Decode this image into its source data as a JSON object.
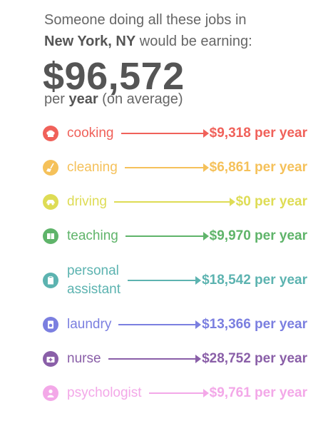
{
  "intro": {
    "line1": "Someone doing all these jobs in",
    "city": "New York, NY",
    "line2_rest": " would be earning:"
  },
  "total": "$96,572",
  "per_year": {
    "prefix": "per ",
    "bold": "year",
    "suffix": " (on average)"
  },
  "jobs": [
    {
      "label": "cooking",
      "value": "$9,318 per year",
      "color": "#f0615a",
      "icon": "chef-hat-icon"
    },
    {
      "label": "cleaning",
      "value": "$6,861 per year",
      "color": "#f5c15a",
      "icon": "broom-icon"
    },
    {
      "label": "driving",
      "value": "$0 per year",
      "color": "#dedc55",
      "icon": "car-icon"
    },
    {
      "label": "teaching",
      "value": "$9,970 per year",
      "color": "#5fb46a",
      "icon": "book-icon"
    },
    {
      "label": "personal",
      "label2": "assistant",
      "value": "$18,542 per year",
      "color": "#5cb3b0",
      "icon": "clipboard-icon"
    },
    {
      "label": "laundry",
      "value": "$13,366 per year",
      "color": "#7b7fe0",
      "icon": "washing-machine-icon"
    },
    {
      "label": "nurse",
      "value": "$28,752 per year",
      "color": "#8a5fa8",
      "icon": "medical-kit-icon"
    },
    {
      "label": "psychologist",
      "value": "$9,761 per year",
      "color": "#f3a8e8",
      "icon": "person-icon"
    }
  ]
}
